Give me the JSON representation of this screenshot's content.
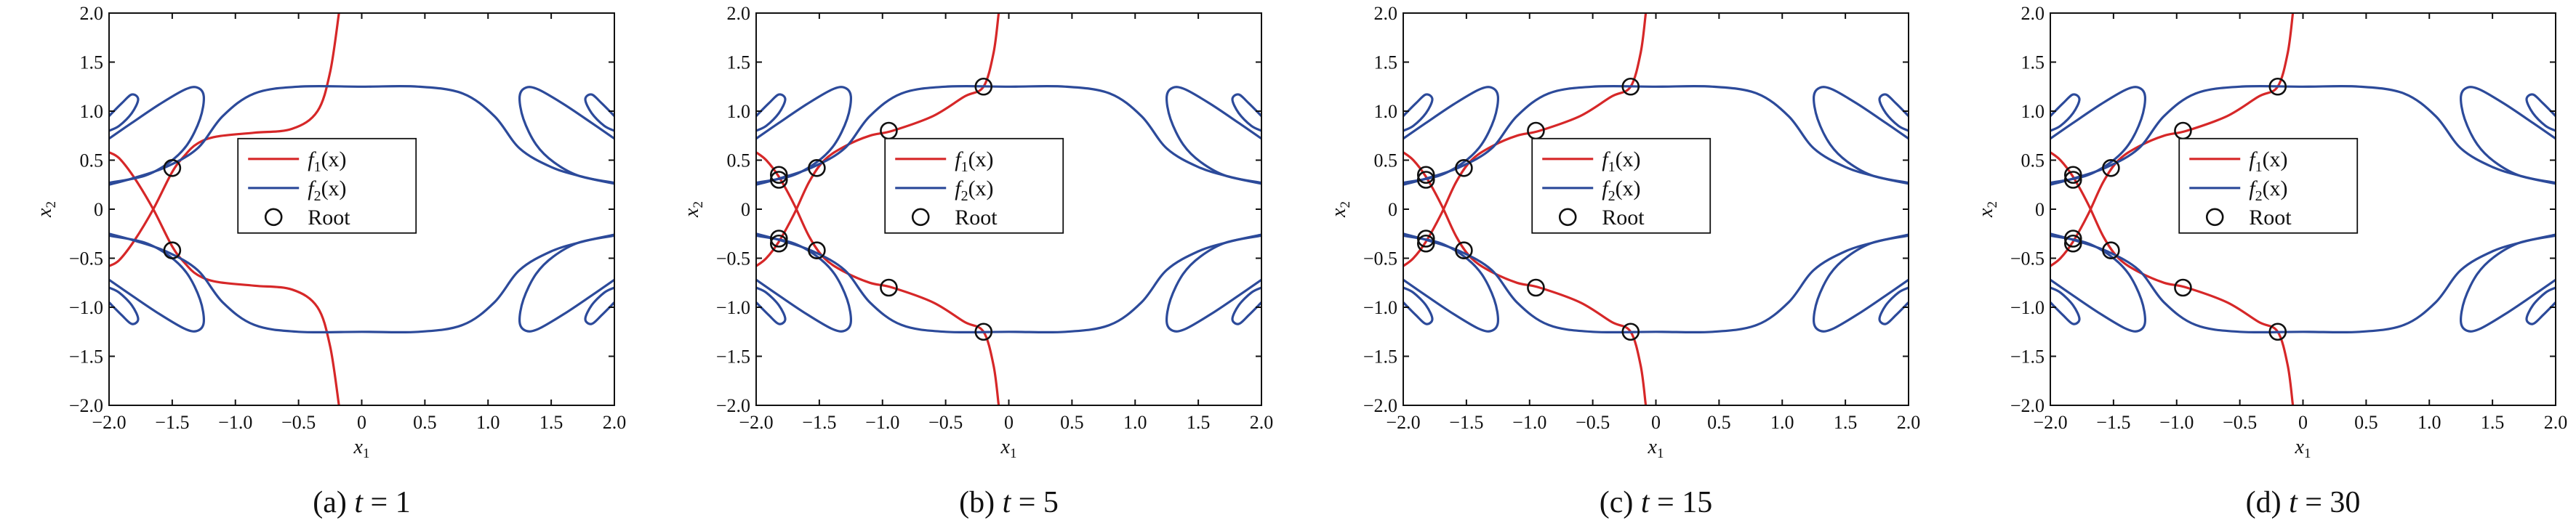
{
  "figure": {
    "captions": [
      "(a) t = 1",
      "(b) t = 5",
      "(c) t = 15",
      "(d) t = 30"
    ]
  },
  "chart_data": [
    {
      "type": "line",
      "panel": "a",
      "caption": "(a) t = 1",
      "xlabel": "x1",
      "ylabel": "x2",
      "xlim": [
        -2,
        2
      ],
      "ylim": [
        -2,
        2
      ],
      "xticks": [
        "−2.0",
        "−1.5",
        "−1.0",
        "−0.5",
        "0",
        "0.5",
        "1.0",
        "1.5",
        "2.0"
      ],
      "yticks": [
        "−2.0",
        "−1.5",
        "−1.0",
        "−0.5",
        "0",
        "0.5",
        "1.0",
        "1.5",
        "2.0"
      ],
      "legend": {
        "position": "center",
        "entries": [
          "f1(x)",
          "f2(x)",
          "Root"
        ]
      },
      "series": [
        {
          "name": "f1(x)",
          "color": "#d62728",
          "curve": "f1_t1"
        },
        {
          "name": "f2(x)",
          "color": "#2c4a9a",
          "curve": "f2"
        },
        {
          "name": "Root",
          "marker": "circle",
          "points": [
            [
              -1.5,
              0.42
            ],
            [
              -1.5,
              -0.42
            ]
          ]
        }
      ]
    },
    {
      "type": "line",
      "panel": "b",
      "caption": "(b) t = 5",
      "xlabel": "x1",
      "ylabel": "x2",
      "xlim": [
        -2,
        2
      ],
      "ylim": [
        -2,
        2
      ],
      "xticks": [
        "−2.0",
        "−1.5",
        "−1.0",
        "−0.5",
        "0",
        "0.5",
        "1.0",
        "1.5",
        "2.0"
      ],
      "yticks": [
        "−2.0",
        "−1.5",
        "−1.0",
        "−0.5",
        "0",
        "0.5",
        "1.0",
        "1.5",
        "2.0"
      ],
      "legend": {
        "position": "center",
        "entries": [
          "f1(x)",
          "f2(x)",
          "Root"
        ]
      },
      "series": [
        {
          "name": "f1(x)",
          "color": "#d62728",
          "curve": "f1_t5"
        },
        {
          "name": "f2(x)",
          "color": "#2c4a9a",
          "curve": "f2"
        },
        {
          "name": "Root",
          "marker": "circle",
          "points": [
            [
              -1.82,
              0.35
            ],
            [
              -1.82,
              0.3
            ],
            [
              -1.52,
              0.42
            ],
            [
              -0.95,
              0.8
            ],
            [
              -0.2,
              1.25
            ],
            [
              -1.82,
              -0.3
            ],
            [
              -1.82,
              -0.35
            ],
            [
              -1.52,
              -0.42
            ],
            [
              -0.95,
              -0.8
            ],
            [
              -0.2,
              -1.25
            ]
          ]
        }
      ]
    },
    {
      "type": "line",
      "panel": "c",
      "caption": "(c) t = 15",
      "xlabel": "x1",
      "ylabel": "x2",
      "xlim": [
        -2,
        2
      ],
      "ylim": [
        -2,
        2
      ],
      "xticks": [
        "−2.0",
        "−1.5",
        "−1.0",
        "−0.5",
        "0",
        "0.5",
        "1.0",
        "1.5",
        "2.0"
      ],
      "yticks": [
        "−2.0",
        "−1.5",
        "−1.0",
        "−0.5",
        "0",
        "0.5",
        "1.0",
        "1.5",
        "2.0"
      ],
      "legend": {
        "position": "center",
        "entries": [
          "f1(x)",
          "f2(x)",
          "Root"
        ]
      },
      "series": [
        {
          "name": "f1(x)",
          "color": "#d62728",
          "curve": "f1_t5"
        },
        {
          "name": "f2(x)",
          "color": "#2c4a9a",
          "curve": "f2"
        },
        {
          "name": "Root",
          "marker": "circle",
          "points": [
            [
              -1.82,
              0.35
            ],
            [
              -1.82,
              0.3
            ],
            [
              -1.52,
              0.42
            ],
            [
              -0.95,
              0.8
            ],
            [
              -0.2,
              1.25
            ],
            [
              -1.82,
              -0.3
            ],
            [
              -1.82,
              -0.35
            ],
            [
              -1.52,
              -0.42
            ],
            [
              -0.95,
              -0.8
            ],
            [
              -0.2,
              -1.25
            ]
          ]
        }
      ]
    },
    {
      "type": "line",
      "panel": "d",
      "caption": "(d) t = 30",
      "xlabel": "x1",
      "ylabel": "x2",
      "xlim": [
        -2,
        2
      ],
      "ylim": [
        -2,
        2
      ],
      "xticks": [
        "−2.0",
        "−1.5",
        "−1.0",
        "−0.5",
        "0",
        "0.5",
        "1.0",
        "1.5",
        "2.0"
      ],
      "yticks": [
        "−2.0",
        "−1.5",
        "−1.0",
        "−0.5",
        "0",
        "0.5",
        "1.0",
        "1.5",
        "2.0"
      ],
      "legend": {
        "position": "center",
        "entries": [
          "f1(x)",
          "f2(x)",
          "Root"
        ]
      },
      "series": [
        {
          "name": "f1(x)",
          "color": "#d62728",
          "curve": "f1_t5"
        },
        {
          "name": "f2(x)",
          "color": "#2c4a9a",
          "curve": "f2"
        },
        {
          "name": "Root",
          "marker": "circle",
          "points": [
            [
              -1.82,
              0.35
            ],
            [
              -1.82,
              0.3
            ],
            [
              -1.52,
              0.42
            ],
            [
              -0.95,
              0.8
            ],
            [
              -0.2,
              1.25
            ],
            [
              -1.82,
              -0.3
            ],
            [
              -1.82,
              -0.35
            ],
            [
              -1.52,
              -0.42
            ],
            [
              -0.95,
              -0.8
            ],
            [
              -0.2,
              -1.25
            ]
          ]
        }
      ]
    }
  ]
}
